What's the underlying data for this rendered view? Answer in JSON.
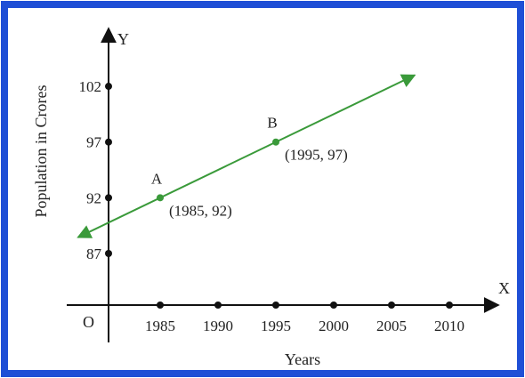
{
  "chart_data": {
    "type": "line",
    "xlabel": "Years",
    "ylabel": "Population in Crores",
    "x_axis_letter": "X",
    "y_axis_letter": "Y",
    "origin_label": "O",
    "x_ticks": [
      1985,
      1990,
      1995,
      2000,
      2005,
      2010
    ],
    "y_ticks": [
      87,
      92,
      97,
      102
    ],
    "points": [
      {
        "name": "A",
        "x": 1985,
        "y": 92,
        "coord_label": "(1985, 92)"
      },
      {
        "name": "B",
        "x": 1995,
        "y": 97,
        "coord_label": "(1995, 97)"
      }
    ],
    "line": {
      "slope": 0.5,
      "intercept_at_1985": 92,
      "x_range": [
        1977.9,
        2007.0
      ]
    },
    "colors": {
      "border": "#1f4fd6",
      "line": "#3a9a3a",
      "axes": "#111111",
      "text": "#222222"
    }
  }
}
